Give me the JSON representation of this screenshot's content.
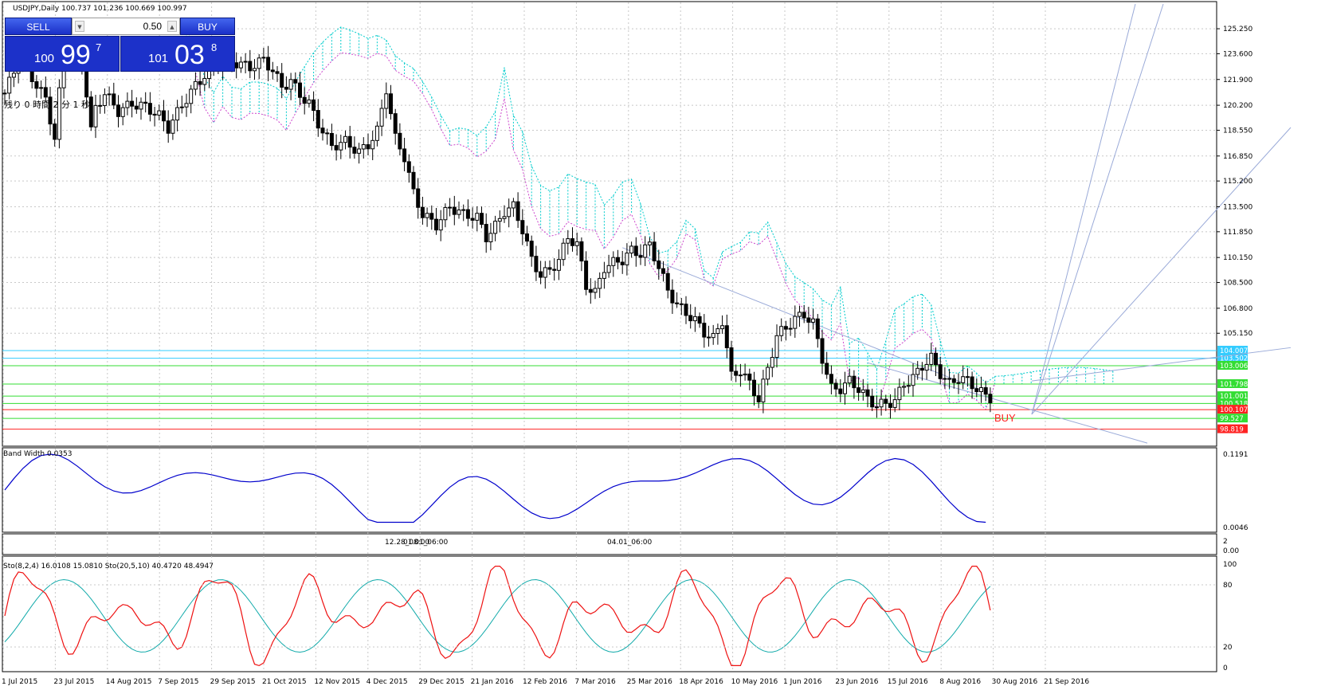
{
  "header": {
    "symbol_info": "USDJPY,Daily  100.737 101.236 100.669 100.997"
  },
  "timer": {
    "text": "残り 0 時間 2 分 1 秒"
  },
  "trade_panel": {
    "sell_label": "SELL",
    "buy_label": "BUY",
    "lot_value": "0.50",
    "sell_price": {
      "prefix": "100",
      "main": "99",
      "sup": "7"
    },
    "buy_price": {
      "prefix": "101",
      "main": "03",
      "sup": "8"
    }
  },
  "buy_marker": "BUY",
  "chart_data": {
    "type": "candlestick",
    "price_axis": {
      "range": [
        97.8,
        126.2
      ],
      "ticks": [
        "125.250",
        "123.600",
        "121.900",
        "120.200",
        "118.550",
        "116.850",
        "115.200",
        "113.500",
        "111.850",
        "110.150",
        "108.500",
        "106.800",
        "105.150"
      ]
    },
    "price_levels": [
      {
        "label": "104.007",
        "value": 104.007,
        "color": "#33ccff"
      },
      {
        "label": "103.502",
        "value": 103.502,
        "color": "#33ccff"
      },
      {
        "label": "103.006",
        "value": 103.006,
        "color": "#33dd33"
      },
      {
        "label": "101.798",
        "value": 101.798,
        "color": "#33dd33"
      },
      {
        "label": "101.001",
        "value": 101.001,
        "color": "#33dd33"
      },
      {
        "label": "100.518",
        "value": 100.518,
        "color": "#33dd33"
      },
      {
        "label": "100.107",
        "value": 100.107,
        "color": "#ff2222"
      },
      {
        "label": "99.527",
        "value": 99.527,
        "color": "#33dd33"
      },
      {
        "label": "98.819",
        "value": 98.819,
        "color": "#ff2222"
      }
    ],
    "x_labels": [
      "1 Jul 2015",
      "23 Jul 2015",
      "14 Aug 2015",
      "7 Sep 2015",
      "29 Sep 2015",
      "21 Oct 2015",
      "12 Nov 2015",
      "4 Dec 2015",
      "29 Dec 2015",
      "21 Jan 2016",
      "12 Feb 2016",
      "7 Mar 2016",
      "25 Mar 2016",
      "18 Apr 2016",
      "10 May 2016",
      "1 Jun 2016",
      "23 Jun 2016",
      "15 Jul 2016",
      "8 Aug 2016",
      "30 Aug 2016",
      "21 Sep 2016"
    ],
    "close_path": [
      [
        0,
        121.0
      ],
      [
        4,
        123.8
      ],
      [
        6,
        122.0
      ],
      [
        9,
        120.6
      ],
      [
        11,
        118.0
      ],
      [
        13,
        124.0
      ],
      [
        15,
        123.8
      ],
      [
        17,
        123.0
      ],
      [
        18,
        121.0
      ],
      [
        19,
        118.5
      ],
      [
        20,
        120.0
      ],
      [
        22,
        121.0
      ],
      [
        25,
        119.8
      ],
      [
        28,
        120.3
      ],
      [
        31,
        120.1
      ],
      [
        34,
        119.5
      ],
      [
        36,
        118.7
      ],
      [
        39,
        120.2
      ],
      [
        42,
        121.5
      ],
      [
        45,
        122.5
      ],
      [
        48,
        123.2
      ],
      [
        51,
        123.0
      ],
      [
        54,
        122.7
      ],
      [
        57,
        123.2
      ],
      [
        59,
        122.5
      ],
      [
        61,
        121.4
      ],
      [
        63,
        121.8
      ],
      [
        65,
        120.9
      ],
      [
        67,
        120.3
      ],
      [
        69,
        119.0
      ],
      [
        72,
        117.5
      ],
      [
        75,
        117.8
      ],
      [
        78,
        117.1
      ],
      [
        80,
        117.6
      ],
      [
        82,
        118.5
      ],
      [
        84,
        121.3
      ],
      [
        86,
        118.0
      ],
      [
        88,
        116.8
      ],
      [
        90,
        114.4
      ],
      [
        92,
        113.0
      ],
      [
        95,
        112.3
      ],
      [
        98,
        113.5
      ],
      [
        101,
        113.0
      ],
      [
        104,
        112.8
      ],
      [
        106,
        111.5
      ],
      [
        108,
        112.2
      ],
      [
        110,
        113.2
      ],
      [
        112,
        113.5
      ],
      [
        114,
        112.0
      ],
      [
        116,
        110.0
      ],
      [
        118,
        109.0
      ],
      [
        120,
        109.3
      ],
      [
        122,
        110.0
      ],
      [
        124,
        111.5
      ],
      [
        126,
        111.0
      ],
      [
        128,
        108.3
      ],
      [
        130,
        107.8
      ],
      [
        132,
        109.5
      ],
      [
        134,
        109.8
      ],
      [
        136,
        110.0
      ],
      [
        138,
        110.6
      ],
      [
        140,
        110.4
      ],
      [
        142,
        111.0
      ],
      [
        144,
        109.5
      ],
      [
        146,
        108.0
      ],
      [
        148,
        107.0
      ],
      [
        150,
        106.5
      ],
      [
        152,
        106.0
      ],
      [
        154,
        105.2
      ],
      [
        156,
        104.8
      ],
      [
        158,
        106.0
      ],
      [
        160,
        102.3
      ],
      [
        162,
        102.7
      ],
      [
        164,
        101.8
      ],
      [
        166,
        100.8
      ],
      [
        168,
        102.8
      ],
      [
        170,
        105.0
      ],
      [
        172,
        105.5
      ],
      [
        174,
        106.1
      ],
      [
        176,
        106.4
      ],
      [
        178,
        105.8
      ],
      [
        180,
        103.5
      ],
      [
        182,
        101.5
      ],
      [
        184,
        101.5
      ],
      [
        186,
        102.0
      ],
      [
        188,
        101.5
      ],
      [
        190,
        100.8
      ],
      [
        192,
        100.4
      ],
      [
        194,
        100.5
      ],
      [
        196,
        100.7
      ],
      [
        198,
        101.8
      ],
      [
        200,
        102.2
      ],
      [
        202,
        103.0
      ],
      [
        204,
        103.5
      ],
      [
        206,
        102.5
      ],
      [
        208,
        101.8
      ],
      [
        210,
        102.2
      ],
      [
        212,
        102.0
      ],
      [
        214,
        101.5
      ],
      [
        216,
        101.0
      ],
      [
        217,
        100.9
      ]
    ],
    "indicators": {
      "band_width": {
        "label": "Band Width 0.0353",
        "ticks": [
          "0.1191",
          "0.0046"
        ]
      },
      "middle_panel": {
        "labels": [
          "12.28_08:00",
          "01.01_06:00",
          "04.01_06:00"
        ],
        "ticks": [
          "2",
          "0.00"
        ]
      },
      "stochastic": {
        "label": "Sto(8,2,4) 16.0108 15.0810  Sto(20,5,10) 40.4720 48.4947",
        "ticks": [
          "100",
          "80",
          "20",
          "0"
        ]
      }
    },
    "colors": {
      "candle": "#000000",
      "cloud_a": "#00cccc",
      "cloud_b": "#cc44cc",
      "band_width": "#0000cc",
      "sto_fast": "#ee1111",
      "sto_slow": "#11aaaa"
    }
  }
}
